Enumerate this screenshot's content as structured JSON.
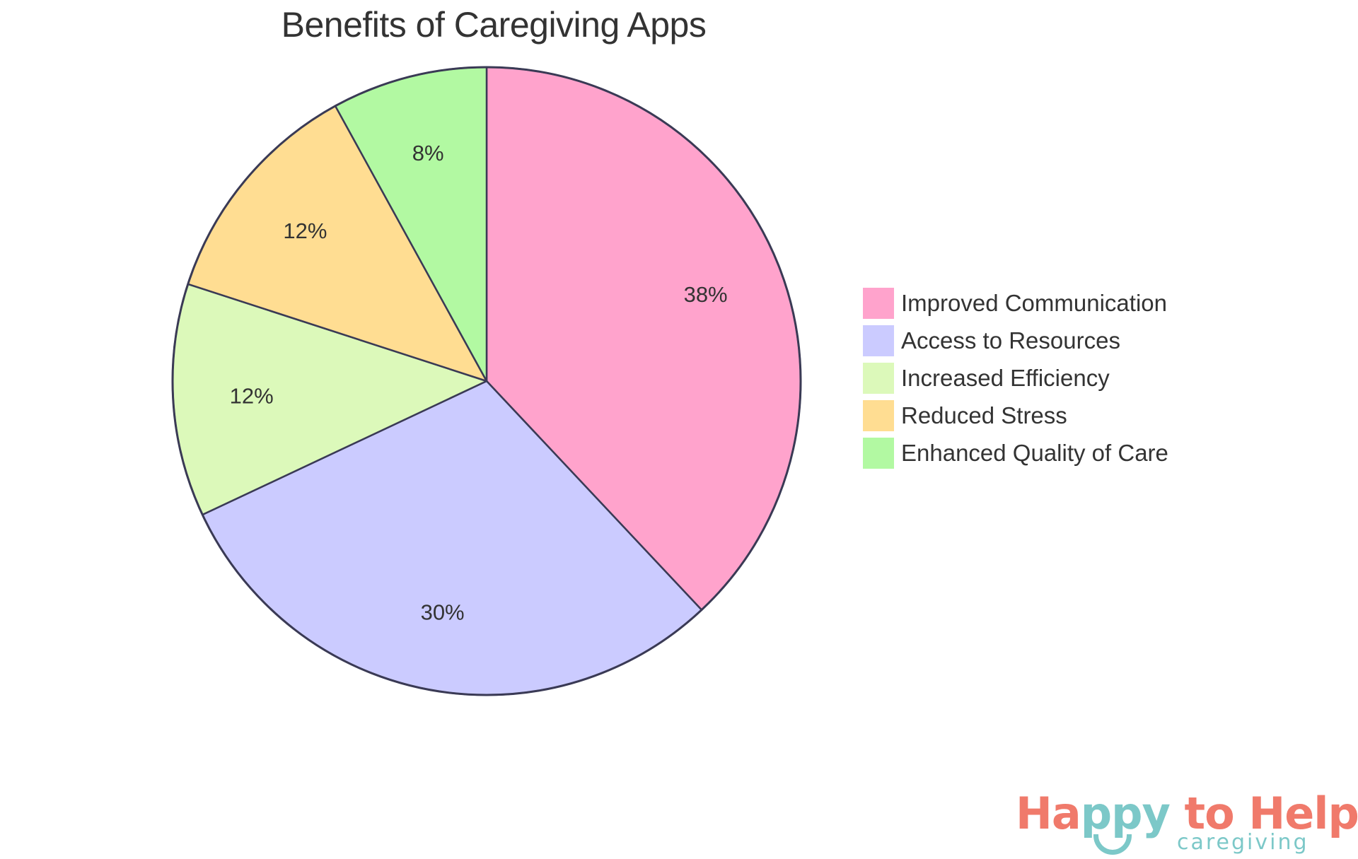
{
  "chart_data": {
    "type": "pie",
    "title": "Benefits of Caregiving Apps",
    "categories": [
      "Improved Communication",
      "Access to Resources",
      "Increased Efficiency",
      "Reduced Stress",
      "Enhanced Quality of Care"
    ],
    "values": [
      38,
      30,
      12,
      12,
      8
    ],
    "labels": [
      "38%",
      "30%",
      "12%",
      "12%",
      "8%"
    ],
    "colors": [
      "#FFA3CC",
      "#CBCBFF",
      "#DCF9BA",
      "#FFDD92",
      "#B2F9A2"
    ],
    "stroke_color": "#3A3A55",
    "start_angle": "12 o'clock, clockwise",
    "legend_position": "right"
  },
  "title": "Benefits of Caregiving Apps",
  "legend": {
    "items": [
      {
        "label": "Improved Communication",
        "color": "#FFA3CC"
      },
      {
        "label": "Access to Resources",
        "color": "#CBCBFF"
      },
      {
        "label": "Increased Efficiency",
        "color": "#DCF9BA"
      },
      {
        "label": "Reduced Stress",
        "color": "#FFDD92"
      },
      {
        "label": "Enhanced Quality of Care",
        "color": "#B2F9A2"
      }
    ]
  },
  "logo": {
    "word1_a": "Ha",
    "word1_b": "ppy",
    "word2": " to Help",
    "tagline": "caregiving",
    "primary_color": "#F07A6B",
    "secondary_color": "#7CC8C8"
  }
}
